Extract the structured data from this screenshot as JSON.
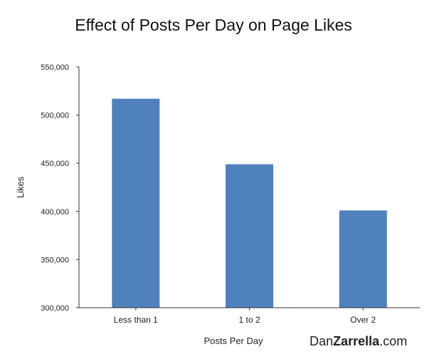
{
  "chart_data": {
    "type": "bar",
    "title": "Effect of Posts Per Day on Page Likes",
    "xlabel": "Posts Per Day",
    "ylabel": "Likes",
    "categories": [
      "Less than 1",
      "1 to 2",
      "Over 2"
    ],
    "values": [
      517000,
      449000,
      401000
    ],
    "ylim": [
      300000,
      550000
    ],
    "yticks": [
      {
        "value": 300000,
        "label": "300,000"
      },
      {
        "value": 350000,
        "label": "350,000"
      },
      {
        "value": 400000,
        "label": "400,000"
      },
      {
        "value": 450000,
        "label": "450,000"
      },
      {
        "value": 500000,
        "label": "500,000"
      },
      {
        "value": 550000,
        "label": "550,000"
      }
    ],
    "grid": false,
    "legend": "none",
    "bar_color": "#4f81bd",
    "axis_color": "#333333"
  },
  "watermark": {
    "prefix": "Dan",
    "bold": "Zarrella",
    "suffix": ".com"
  }
}
